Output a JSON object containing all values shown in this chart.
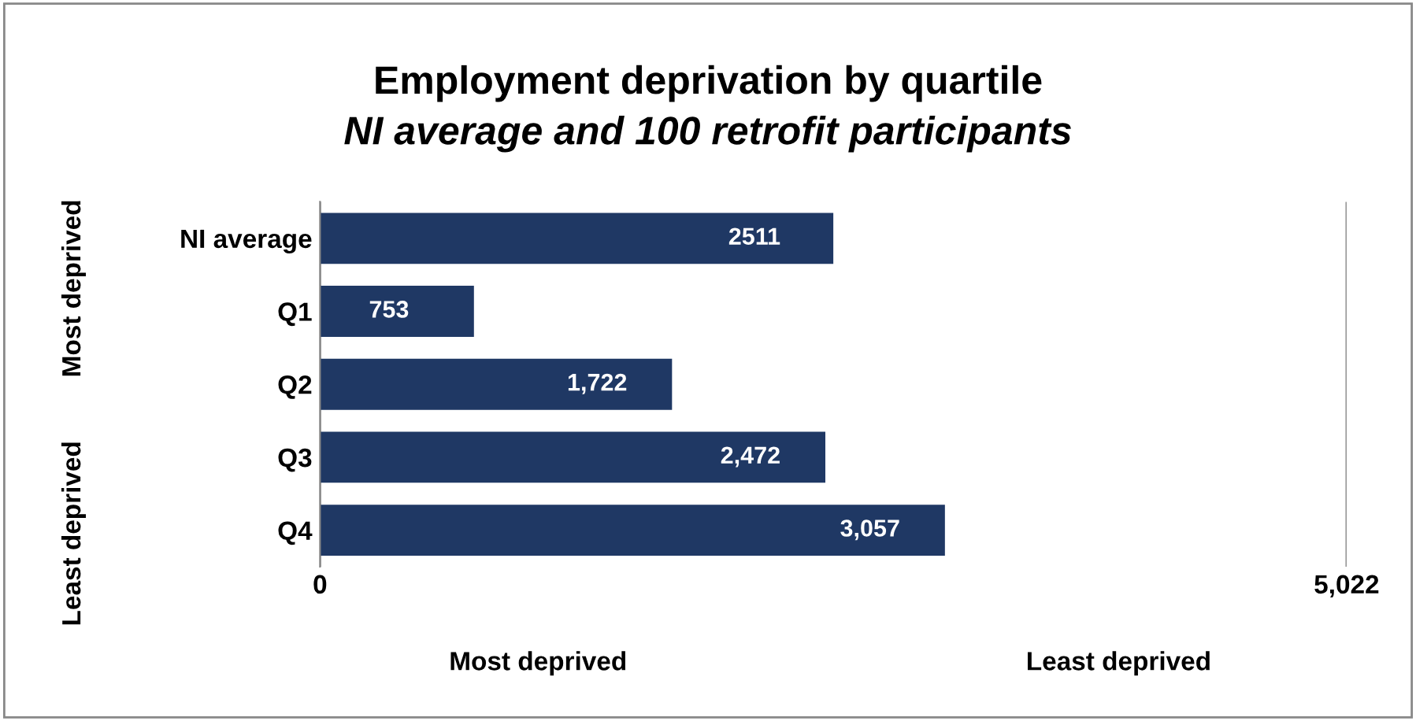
{
  "chart_data": {
    "type": "bar",
    "orientation": "horizontal",
    "title": "Employment deprivation by quartile",
    "subtitle": "NI average and 100 retrofit participants",
    "categories": [
      "NI average",
      "Q1",
      "Q2",
      "Q3",
      "Q4"
    ],
    "values": [
      2511,
      753,
      1722,
      2472,
      3057
    ],
    "value_labels": [
      "2511",
      "753",
      "1,722",
      "2,472",
      "3,057"
    ],
    "color": "#1f3864",
    "xlim": [
      0,
      5022
    ],
    "xticks": [
      0,
      {
        "value": 5022,
        "label": "5,022"
      }
    ],
    "grid": "x",
    "annotations": [
      "Most deprived",
      "Least deprived",
      "Most deprived",
      "Least deprived"
    ]
  }
}
